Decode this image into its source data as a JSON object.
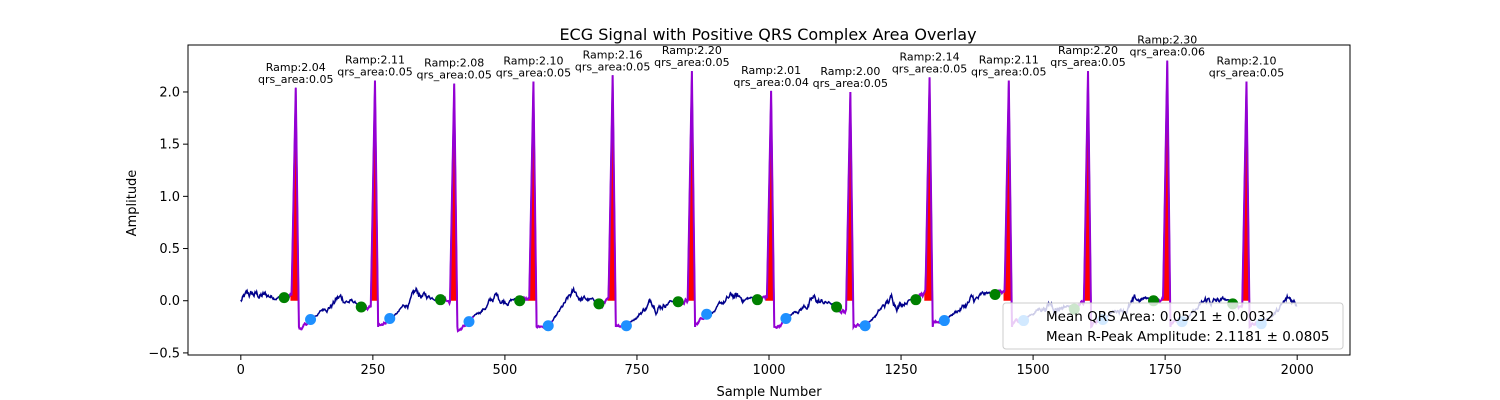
{
  "chart_data": {
    "type": "line",
    "title": "ECG Signal with Positive QRS Complex Area Overlay",
    "xlabel": "Sample Number",
    "ylabel": "Amplitude",
    "xlim": [
      -100,
      2100
    ],
    "ylim": [
      -0.52,
      2.45
    ],
    "xticks": [
      0,
      250,
      500,
      750,
      1000,
      1250,
      1500,
      1750,
      2000
    ],
    "yticks": [
      -0.5,
      0.0,
      0.5,
      1.0,
      1.5,
      2.0
    ],
    "ytick_labels": [
      "−0.5",
      "0.0",
      "0.5",
      "1.0",
      "1.5",
      "2.0"
    ],
    "grid": false,
    "colors": {
      "signal": "#00008b",
      "qrs_overlay": "#9400d3",
      "qrs_fill": "#ff0000",
      "q_marker": "#008000",
      "s_marker": "#1e90ff"
    },
    "beats": [
      {
        "r_x": 104,
        "r_amp": 2.04,
        "qrs_area": 0.05,
        "q_x": 82,
        "q_y": 0.03,
        "s_x": 132,
        "s_y": -0.18,
        "label_ramp": "Ramp:2.04",
        "label_area": "qrs_area:0.05"
      },
      {
        "r_x": 254,
        "r_amp": 2.11,
        "qrs_area": 0.05,
        "q_x": 228,
        "q_y": -0.06,
        "s_x": 282,
        "s_y": -0.17,
        "label_ramp": "Ramp:2.11",
        "label_area": "qrs_area:0.05"
      },
      {
        "r_x": 404,
        "r_amp": 2.08,
        "qrs_area": 0.05,
        "q_x": 378,
        "q_y": 0.01,
        "s_x": 432,
        "s_y": -0.2,
        "label_ramp": "Ramp:2.08",
        "label_area": "qrs_area:0.05"
      },
      {
        "r_x": 554,
        "r_amp": 2.1,
        "qrs_area": 0.05,
        "q_x": 528,
        "q_y": 0.0,
        "s_x": 582,
        "s_y": -0.24,
        "label_ramp": "Ramp:2.10",
        "label_area": "qrs_area:0.05"
      },
      {
        "r_x": 704,
        "r_amp": 2.16,
        "qrs_area": 0.05,
        "q_x": 678,
        "q_y": -0.03,
        "s_x": 730,
        "s_y": -0.24,
        "label_ramp": "Ramp:2.16",
        "label_area": "qrs_area:0.05"
      },
      {
        "r_x": 854,
        "r_amp": 2.2,
        "qrs_area": 0.05,
        "q_x": 828,
        "q_y": -0.01,
        "s_x": 882,
        "s_y": -0.13,
        "label_ramp": "Ramp:2.20",
        "label_area": "qrs_area:0.05"
      },
      {
        "r_x": 1004,
        "r_amp": 2.01,
        "qrs_area": 0.04,
        "q_x": 978,
        "q_y": 0.01,
        "s_x": 1032,
        "s_y": -0.17,
        "label_ramp": "Ramp:2.01",
        "label_area": "qrs_area:0.04"
      },
      {
        "r_x": 1154,
        "r_amp": 2.0,
        "qrs_area": 0.05,
        "q_x": 1128,
        "q_y": -0.06,
        "s_x": 1182,
        "s_y": -0.24,
        "label_ramp": "Ramp:2.00",
        "label_area": "qrs_area:0.05"
      },
      {
        "r_x": 1304,
        "r_amp": 2.14,
        "qrs_area": 0.05,
        "q_x": 1278,
        "q_y": 0.01,
        "s_x": 1332,
        "s_y": -0.19,
        "label_ramp": "Ramp:2.14",
        "label_area": "qrs_area:0.05"
      },
      {
        "r_x": 1454,
        "r_amp": 2.11,
        "qrs_area": 0.05,
        "q_x": 1428,
        "q_y": 0.06,
        "s_x": 1482,
        "s_y": -0.19,
        "label_ramp": "Ramp:2.11",
        "label_area": "qrs_area:0.05"
      },
      {
        "r_x": 1604,
        "r_amp": 2.2,
        "qrs_area": 0.05,
        "q_x": 1578,
        "q_y": -0.08,
        "s_x": 1632,
        "s_y": -0.18,
        "label_ramp": "Ramp:2.20",
        "label_area": "qrs_area:0.05"
      },
      {
        "r_x": 1754,
        "r_amp": 2.3,
        "qrs_area": 0.06,
        "q_x": 1728,
        "q_y": 0.0,
        "s_x": 1782,
        "s_y": -0.2,
        "label_ramp": "Ramp:2.30",
        "label_area": "qrs_area:0.06"
      },
      {
        "r_x": 1904,
        "r_amp": 2.1,
        "qrs_area": 0.05,
        "q_x": 1878,
        "q_y": -0.03,
        "s_x": 1932,
        "s_y": -0.22,
        "label_ramp": "Ramp:2.10",
        "label_area": "qrs_area:0.05"
      }
    ],
    "legend": {
      "position": "lower-right",
      "entries": [
        "Mean QRS Area: 0.0521 ± 0.0032",
        "Mean R-Peak Amplitude: 2.1181 ± 0.0805"
      ]
    }
  }
}
